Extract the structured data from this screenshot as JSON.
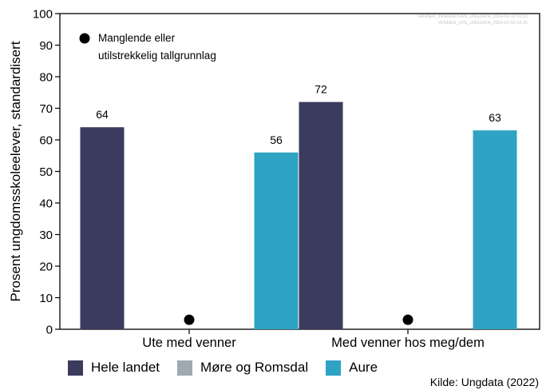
{
  "chart_data": {
    "type": "bar",
    "categories": [
      "Ute med venner",
      "Med venner hos meg/dem"
    ],
    "series": [
      {
        "name": "Hele landet",
        "values": [
          64,
          72
        ],
        "color": "#3a3b5e"
      },
      {
        "name": "Møre og Romsdal",
        "values": [
          null,
          null
        ],
        "color": "#9ea9b2"
      },
      {
        "name": "Aure",
        "values": [
          56,
          63
        ],
        "color": "#2ea3c3"
      }
    ],
    "missing_marker": {
      "series": "Møre og Romsdal",
      "value": 3,
      "color": "#000000"
    },
    "ylabel": "Prosent ungdomsskoleelever, standardisert",
    "xlabel": "",
    "ylim": [
      0,
      100
    ],
    "yticks": [
      0,
      10,
      20,
      30,
      40,
      50,
      60,
      70,
      80,
      90,
      100
    ],
    "grid": false,
    "legend_position": "bottom"
  },
  "annotation": {
    "line1": "Manglende eller",
    "line2": "utilstrekkelig tallgrunnlag"
  },
  "source": "Kilde: Ungdata (2022)",
  "watermark": {
    "line1": "VENNER_INNEMEDVEN_UNGDATA_2024-04-19 16:13",
    "line2": "VENNER_UTE_UNGDATA_2024-01-09 18:25"
  }
}
